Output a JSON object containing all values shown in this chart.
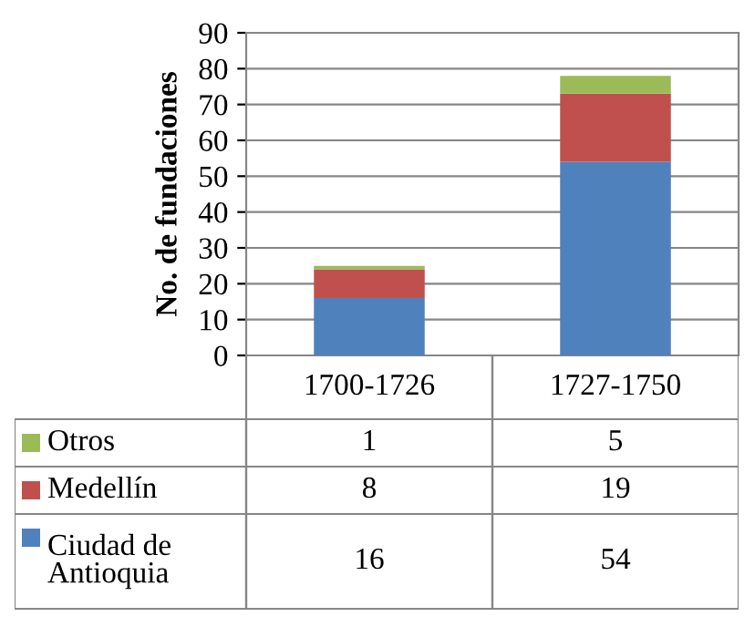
{
  "chart_data": {
    "type": "bar",
    "stacked": true,
    "ylabel": "No. de fundaciones",
    "categories": [
      "1700-1726",
      "1727-1750"
    ],
    "series": [
      {
        "name": "Ciudad de Antioquia",
        "color": "#4f81bd",
        "values": [
          16,
          54
        ]
      },
      {
        "name": "Medellín",
        "color": "#c0504d",
        "values": [
          8,
          19
        ]
      },
      {
        "name": "Otros",
        "color": "#9bbb59",
        "values": [
          1,
          5
        ]
      }
    ],
    "ylim": [
      0,
      90
    ],
    "yticks": [
      0,
      10,
      20,
      30,
      40,
      50,
      60,
      70,
      80,
      90
    ],
    "grid": "y",
    "data_labels": true,
    "legend": "bottom"
  }
}
